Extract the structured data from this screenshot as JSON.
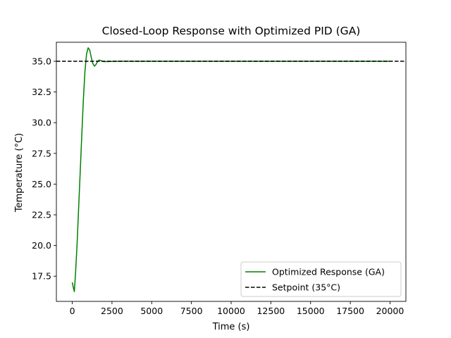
{
  "chart_data": {
    "type": "line",
    "title": "Closed-Loop Response with Optimized PID (GA)",
    "xlabel": "Time (s)",
    "ylabel": "Temperature (°C)",
    "xlim": [
      -1000,
      21000
    ],
    "ylim": [
      15.45,
      36.55
    ],
    "xticks": [
      0,
      2500,
      5000,
      7500,
      10000,
      12500,
      15000,
      17500,
      20000
    ],
    "xtick_labels": [
      "0",
      "2500",
      "5000",
      "7500",
      "10000",
      "12500",
      "15000",
      "17500",
      "20000"
    ],
    "yticks": [
      17.5,
      20.0,
      22.5,
      25.0,
      27.5,
      30.0,
      32.5,
      35.0
    ],
    "ytick_labels": [
      "17.5",
      "20.0",
      "22.5",
      "25.0",
      "27.5",
      "30.0",
      "32.5",
      "35.0"
    ],
    "grid": false,
    "legend_position": "bottom-right",
    "series": [
      {
        "name": "Optimized Response (GA)",
        "color": "#008000",
        "style": "solid",
        "points": [
          [
            0,
            17.0
          ],
          [
            80,
            16.5
          ],
          [
            130,
            16.25
          ],
          [
            200,
            17.6
          ],
          [
            300,
            20.0
          ],
          [
            400,
            23.0
          ],
          [
            500,
            26.0
          ],
          [
            600,
            29.0
          ],
          [
            700,
            31.9
          ],
          [
            800,
            34.2
          ],
          [
            900,
            35.6
          ],
          [
            1000,
            36.1
          ],
          [
            1100,
            35.9
          ],
          [
            1200,
            35.3
          ],
          [
            1300,
            34.8
          ],
          [
            1400,
            34.6
          ],
          [
            1500,
            34.75
          ],
          [
            1600,
            35.0
          ],
          [
            1700,
            35.1
          ],
          [
            1800,
            35.05
          ],
          [
            2000,
            34.97
          ],
          [
            2500,
            34.99
          ],
          [
            3000,
            35.0
          ],
          [
            20000,
            35.0
          ]
        ]
      },
      {
        "name": "Setpoint (35°C)",
        "color": "#000000",
        "style": "dashed",
        "points": [
          [
            -1000,
            35.0
          ],
          [
            21000,
            35.0
          ]
        ]
      }
    ]
  }
}
